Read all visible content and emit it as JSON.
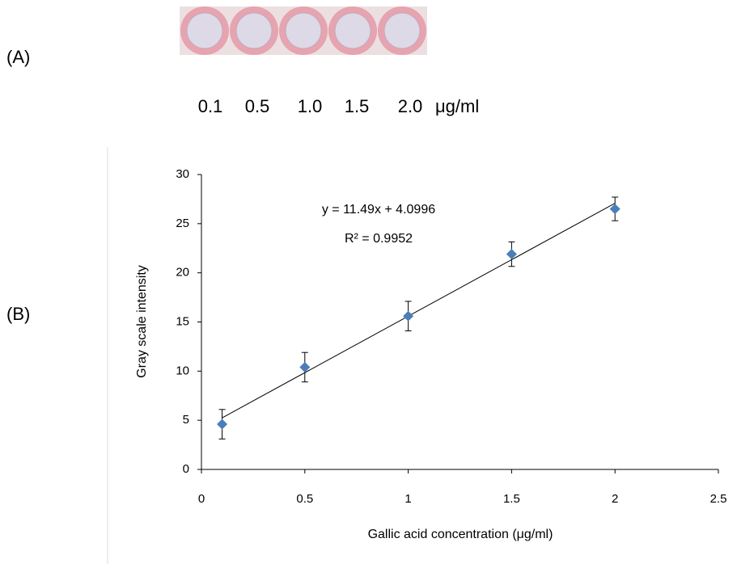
{
  "panel_a": {
    "label": "(A)",
    "concentrations": [
      "0.1",
      "0.5",
      "1.0",
      "1.5",
      "2.0"
    ],
    "unit": "μg/ml"
  },
  "panel_b": {
    "label": "(B)"
  },
  "chart_data": {
    "type": "scatter",
    "x_label": "Gallic acid concentration (μg/ml)",
    "y_label": "Gray scale intensity",
    "x": [
      0.1,
      0.5,
      1,
      1.5,
      2
    ],
    "values": [
      4.6,
      10.4,
      15.6,
      21.9,
      26.5
    ],
    "errors": [
      1.5,
      1.5,
      1.5,
      1.25,
      1.2
    ],
    "color": "#4a7ebb",
    "xlim": [
      0,
      2.5
    ],
    "xticks": [
      0,
      0.5,
      1,
      1.5,
      2,
      2.5
    ],
    "ylim": [
      0,
      30
    ],
    "yticks": [
      0,
      5,
      10,
      15,
      20,
      25,
      30
    ],
    "trendline": {
      "slope": 11.49,
      "intercept": 4.0996,
      "equation": "y = 11.49x + 4.0996",
      "r2": "R² = 0.9952"
    }
  }
}
